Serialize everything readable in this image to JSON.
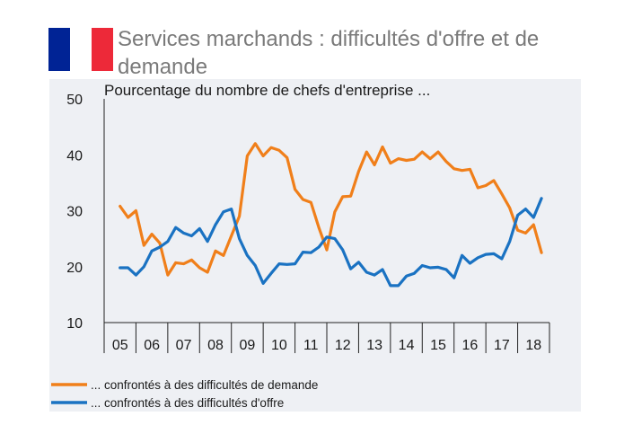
{
  "header": {
    "title": "Services marchands : difficultés d'offre et de demande",
    "flag_colors": [
      "#002395",
      "#ffffff",
      "#ed2939"
    ]
  },
  "chart_data": {
    "type": "line",
    "title": "Pourcentage du nombre de chefs d'entreprise  ...",
    "xlabel": "",
    "ylabel": "",
    "ylim": [
      10,
      50
    ],
    "yticks": [
      "50",
      "40",
      "30",
      "20",
      "10"
    ],
    "year_labels": [
      "05",
      "06",
      "07",
      "08",
      "09",
      "10",
      "11",
      "12",
      "13",
      "14",
      "15",
      "16",
      "17",
      "18"
    ],
    "x_start_year": 2004,
    "x_end_year": 2018,
    "points_per_year": 4,
    "grid": false,
    "legend_position": "bottom",
    "series": [
      {
        "name": "... confrontés à des difficultés de demande",
        "color": "#f07f1a",
        "values": [
          30.8,
          28.8,
          30.0,
          23.8,
          25.8,
          24.2,
          18.5,
          20.7,
          20.5,
          21.2,
          19.8,
          19.0,
          22.8,
          22.0,
          25.5,
          29.0,
          39.8,
          42.0,
          39.8,
          41.3,
          40.8,
          39.5,
          33.8,
          32.0,
          31.5,
          27.0,
          23.0,
          29.8,
          32.5,
          32.6,
          37.0,
          40.5,
          38.2,
          41.4,
          38.5,
          39.3,
          39.0,
          39.2,
          40.5,
          39.3,
          40.5,
          38.8,
          37.5,
          37.2,
          37.4,
          34.1,
          34.5,
          35.4,
          33.0,
          30.5,
          26.5,
          26.0,
          27.5,
          22.5
        ]
      },
      {
        "name": "... confrontés à des difficultés d'offre",
        "color": "#1a72c2",
        "values": [
          19.8,
          19.8,
          18.5,
          20.0,
          22.8,
          23.5,
          24.5,
          27.0,
          26.0,
          25.5,
          26.8,
          24.5,
          27.5,
          29.8,
          30.3,
          25.0,
          22.0,
          20.2,
          17.0,
          18.8,
          20.5,
          20.4,
          20.5,
          22.6,
          22.5,
          23.5,
          25.3,
          25.0,
          23.0,
          19.6,
          20.8,
          19.0,
          18.5,
          19.5,
          16.6,
          16.6,
          18.3,
          18.8,
          20.2,
          19.8,
          19.9,
          19.5,
          18.0,
          22.0,
          20.6,
          21.6,
          22.2,
          22.3,
          21.4,
          24.5,
          29.2,
          30.3,
          28.8,
          32.2
        ]
      }
    ]
  }
}
